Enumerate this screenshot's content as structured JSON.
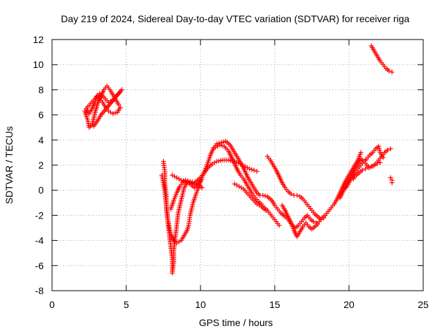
{
  "chart_data": {
    "type": "scatter",
    "title": "Day 219 of 2024, Sidereal Day-to-day VTEC variation (SDTVAR) for receiver riga",
    "xlabel": "GPS time / hours",
    "ylabel": "SDTVAR / TECUs",
    "xlim": [
      0,
      25
    ],
    "ylim": [
      -8,
      12
    ],
    "x_ticks": [
      "0",
      "5",
      "10",
      "15",
      "20",
      "25"
    ],
    "y_ticks": [
      "-8",
      "-6",
      "-4",
      "-2",
      "0",
      "2",
      "4",
      "6",
      "8",
      "10",
      "12"
    ],
    "grid": true,
    "marker": "+",
    "color": "#ff0000",
    "series": [
      {
        "points": [
          [
            2.2,
            6.3
          ],
          [
            2.4,
            5.6
          ],
          [
            2.5,
            5.0
          ],
          [
            2.7,
            5.2
          ],
          [
            2.9,
            6.2
          ],
          [
            3.1,
            7.0
          ],
          [
            3.3,
            7.5
          ],
          [
            3.5,
            8.0
          ],
          [
            3.7,
            8.3
          ],
          [
            3.9,
            8.0
          ],
          [
            4.1,
            7.6
          ],
          [
            4.3,
            7.2
          ],
          [
            4.5,
            6.8
          ],
          [
            4.6,
            6.6
          ],
          [
            4.4,
            6.2
          ],
          [
            4.1,
            6.1
          ],
          [
            3.8,
            6.3
          ],
          [
            3.6,
            6.6
          ],
          [
            3.4,
            7.0
          ],
          [
            3.2,
            7.3
          ],
          [
            3.0,
            7.5
          ],
          [
            2.9,
            7.0
          ],
          [
            2.7,
            6.5
          ],
          [
            2.5,
            6.1
          ],
          [
            2.3,
            6.5
          ],
          [
            2.6,
            6.9
          ],
          [
            2.9,
            7.3
          ],
          [
            3.2,
            7.7
          ],
          [
            3.5,
            7.4
          ],
          [
            3.8,
            7.0
          ],
          [
            4.1,
            7.2
          ],
          [
            4.4,
            7.6
          ],
          [
            4.7,
            8.0
          ],
          [
            3.3,
            6.0
          ],
          [
            3.1,
            5.6
          ],
          [
            2.8,
            5.1
          ]
        ]
      },
      {
        "points": [
          [
            7.5,
            2.3
          ],
          [
            7.6,
            1.5
          ],
          [
            7.6,
            0.5
          ],
          [
            7.7,
            -0.5
          ],
          [
            7.7,
            -1.5
          ],
          [
            7.8,
            -2.5
          ],
          [
            7.9,
            -3.5
          ],
          [
            8.0,
            -4.5
          ],
          [
            8.1,
            -5.5
          ],
          [
            8.1,
            -6.6
          ],
          [
            8.2,
            -5.8
          ],
          [
            8.2,
            -4.8
          ],
          [
            8.3,
            -3.8
          ],
          [
            8.4,
            -2.8
          ],
          [
            8.5,
            -1.8
          ],
          [
            8.7,
            -0.8
          ],
          [
            8.9,
            0.2
          ],
          [
            9.1,
            0.6
          ],
          [
            9.4,
            0.4
          ],
          [
            9.6,
            0.2
          ],
          [
            9.8,
            0.4
          ],
          [
            10.0,
            0.8
          ]
        ]
      },
      {
        "points": [
          [
            7.4,
            1.2
          ],
          [
            7.5,
            0.6
          ],
          [
            7.6,
            -0.2
          ],
          [
            7.7,
            -1.2
          ],
          [
            7.8,
            -2.2
          ],
          [
            7.9,
            -3.0
          ],
          [
            8.0,
            -3.5
          ],
          [
            8.2,
            -4.0
          ],
          [
            8.4,
            -4.2
          ],
          [
            8.7,
            -4.0
          ],
          [
            8.9,
            -3.6
          ],
          [
            9.1,
            -3.2
          ],
          [
            9.2,
            -2.8
          ],
          [
            9.3,
            -2.0
          ],
          [
            9.5,
            -1.0
          ],
          [
            9.7,
            -0.3
          ],
          [
            9.9,
            0.3
          ],
          [
            10.1,
            1.0
          ],
          [
            10.3,
            1.6
          ],
          [
            10.5,
            2.2
          ],
          [
            10.7,
            2.9
          ],
          [
            10.9,
            3.4
          ],
          [
            11.1,
            3.7
          ],
          [
            11.4,
            3.8
          ],
          [
            11.7,
            3.9
          ],
          [
            12.0,
            3.6
          ],
          [
            12.2,
            3.2
          ],
          [
            12.4,
            2.8
          ],
          [
            12.6,
            2.4
          ],
          [
            12.8,
            2.0
          ],
          [
            13.0,
            1.5
          ],
          [
            13.2,
            1.0
          ],
          [
            13.4,
            0.6
          ],
          [
            13.6,
            0.2
          ],
          [
            13.8,
            -0.2
          ],
          [
            14.0,
            -0.4
          ],
          [
            14.2,
            -0.4
          ],
          [
            14.5,
            -0.5
          ],
          [
            14.8,
            -0.8
          ],
          [
            15.0,
            -1.2
          ],
          [
            15.2,
            -1.5
          ],
          [
            15.4,
            -1.8
          ],
          [
            15.6,
            -2.0
          ],
          [
            15.8,
            -2.2
          ],
          [
            16.0,
            -2.5
          ],
          [
            16.2,
            -2.8
          ],
          [
            16.4,
            -3.0
          ],
          [
            16.6,
            -2.8
          ],
          [
            16.8,
            -2.5
          ],
          [
            17.0,
            -2.2
          ],
          [
            17.2,
            -2.0
          ],
          [
            17.4,
            -2.3
          ],
          [
            17.6,
            -2.5
          ],
          [
            17.8,
            -2.6
          ],
          [
            18.0,
            -2.5
          ],
          [
            18.2,
            -2.2
          ],
          [
            18.4,
            -2.0
          ],
          [
            18.6,
            -1.7
          ],
          [
            18.8,
            -1.4
          ],
          [
            19.0,
            -1.1
          ],
          [
            19.2,
            -0.7
          ],
          [
            19.4,
            -0.2
          ],
          [
            19.6,
            0.3
          ],
          [
            19.8,
            0.8
          ],
          [
            20.0,
            1.2
          ],
          [
            20.2,
            1.6
          ],
          [
            20.4,
            2.0
          ],
          [
            20.6,
            2.4
          ],
          [
            20.8,
            3.0
          ]
        ]
      },
      {
        "points": [
          [
            8.0,
            -1.5
          ],
          [
            8.2,
            -0.8
          ],
          [
            8.4,
            -0.2
          ],
          [
            8.6,
            0.3
          ],
          [
            8.8,
            0.6
          ],
          [
            9.0,
            0.8
          ],
          [
            9.3,
            0.7
          ],
          [
            9.6,
            0.6
          ],
          [
            9.9,
            0.9
          ],
          [
            10.2,
            1.3
          ],
          [
            10.5,
            1.8
          ],
          [
            10.8,
            2.1
          ],
          [
            11.1,
            2.3
          ],
          [
            11.5,
            2.4
          ],
          [
            11.9,
            2.4
          ],
          [
            12.3,
            2.3
          ],
          [
            12.7,
            2.1
          ],
          [
            13.0,
            1.9
          ],
          [
            13.3,
            1.7
          ],
          [
            13.6,
            1.6
          ],
          [
            13.8,
            1.5
          ]
        ]
      },
      {
        "points": [
          [
            8.1,
            1.2
          ],
          [
            8.4,
            1.0
          ],
          [
            8.7,
            0.8
          ],
          [
            9.0,
            0.7
          ],
          [
            9.3,
            0.6
          ],
          [
            9.6,
            0.5
          ],
          [
            9.9,
            0.4
          ],
          [
            10.1,
            0.2
          ]
        ]
      },
      {
        "points": [
          [
            11.0,
            3.4
          ],
          [
            11.3,
            3.6
          ],
          [
            11.6,
            3.5
          ],
          [
            11.9,
            3.1
          ],
          [
            12.1,
            2.6
          ],
          [
            12.3,
            2.1
          ],
          [
            12.5,
            1.6
          ],
          [
            12.7,
            1.2
          ],
          [
            12.9,
            0.9
          ],
          [
            13.1,
            0.5
          ],
          [
            13.3,
            0.1
          ],
          [
            13.5,
            -0.3
          ],
          [
            13.7,
            -0.6
          ],
          [
            13.9,
            -0.9
          ],
          [
            14.1,
            -1.1
          ],
          [
            14.3,
            -1.4
          ],
          [
            14.5,
            -1.6
          ],
          [
            14.7,
            -1.9
          ],
          [
            14.9,
            -2.2
          ],
          [
            15.1,
            -2.5
          ],
          [
            15.3,
            -2.8
          ]
        ]
      },
      {
        "points": [
          [
            12.3,
            0.5
          ],
          [
            12.6,
            0.3
          ],
          [
            12.9,
            0.1
          ],
          [
            13.2,
            -0.3
          ],
          [
            13.5,
            -0.7
          ],
          [
            13.8,
            -1.1
          ],
          [
            14.1,
            -1.3
          ],
          [
            14.4,
            -1.6
          ]
        ]
      },
      {
        "points": [
          [
            14.5,
            2.7
          ],
          [
            14.7,
            2.4
          ],
          [
            14.9,
            2.0
          ],
          [
            15.1,
            1.6
          ],
          [
            15.3,
            1.1
          ],
          [
            15.5,
            0.6
          ],
          [
            15.7,
            0.2
          ],
          [
            15.9,
            -0.1
          ],
          [
            16.1,
            -0.3
          ],
          [
            16.3,
            -0.4
          ],
          [
            16.5,
            -0.4
          ],
          [
            16.7,
            -0.5
          ],
          [
            16.9,
            -0.7
          ],
          [
            17.1,
            -1.0
          ],
          [
            17.3,
            -1.3
          ],
          [
            17.5,
            -1.6
          ],
          [
            17.7,
            -1.9
          ],
          [
            17.9,
            -2.1
          ],
          [
            18.1,
            -2.3
          ],
          [
            18.3,
            -2.2
          ]
        ]
      },
      {
        "points": [
          [
            15.5,
            -1.2
          ],
          [
            15.7,
            -1.6
          ],
          [
            15.9,
            -2.1
          ],
          [
            16.1,
            -2.6
          ],
          [
            16.3,
            -3.2
          ],
          [
            16.5,
            -3.7
          ],
          [
            16.7,
            -3.3
          ],
          [
            16.9,
            -2.9
          ],
          [
            17.1,
            -2.6
          ],
          [
            17.3,
            -2.9
          ],
          [
            17.5,
            -3.1
          ],
          [
            17.7,
            -2.9
          ],
          [
            17.9,
            -2.7
          ]
        ]
      },
      {
        "points": [
          [
            19.4,
            -0.6
          ],
          [
            19.6,
            -0.1
          ],
          [
            19.8,
            0.4
          ],
          [
            20.0,
            0.9
          ],
          [
            20.2,
            1.3
          ],
          [
            20.4,
            1.7
          ],
          [
            20.6,
            2.1
          ],
          [
            20.8,
            2.5
          ],
          [
            21.0,
            2.3
          ],
          [
            21.2,
            2.0
          ],
          [
            21.4,
            1.8
          ],
          [
            21.6,
            1.9
          ],
          [
            21.8,
            2.1
          ],
          [
            22.0,
            2.4
          ],
          [
            22.2,
            2.7
          ],
          [
            22.4,
            3.0
          ],
          [
            22.6,
            3.2
          ],
          [
            22.8,
            3.3
          ]
        ]
      },
      {
        "points": [
          [
            19.8,
            0.2
          ],
          [
            20.0,
            0.6
          ],
          [
            20.2,
            1.0
          ],
          [
            20.4,
            1.4
          ],
          [
            20.6,
            1.7
          ],
          [
            20.8,
            2.0
          ],
          [
            21.0,
            2.3
          ],
          [
            21.2,
            2.5
          ],
          [
            21.4,
            2.8
          ],
          [
            21.6,
            3.0
          ],
          [
            21.8,
            3.3
          ],
          [
            22.0,
            3.5
          ],
          [
            22.1,
            3.0
          ],
          [
            22.3,
            2.6
          ]
        ]
      },
      {
        "points": [
          [
            20.3,
            0.9
          ],
          [
            20.5,
            1.2
          ],
          [
            20.7,
            1.4
          ],
          [
            20.9,
            1.6
          ],
          [
            21.1,
            1.7
          ],
          [
            21.3,
            1.8
          ],
          [
            21.5,
            1.9
          ],
          [
            21.7,
            2.0
          ],
          [
            21.9,
            2.1
          ],
          [
            22.1,
            2.2
          ]
        ]
      },
      {
        "points": [
          [
            21.5,
            11.5
          ],
          [
            21.7,
            11.1
          ],
          [
            21.9,
            10.7
          ],
          [
            22.1,
            10.3
          ],
          [
            22.3,
            10.0
          ],
          [
            22.5,
            9.7
          ],
          [
            22.7,
            9.5
          ],
          [
            22.9,
            9.4
          ]
        ]
      },
      {
        "points": [
          [
            22.8,
            1.0
          ],
          [
            22.9,
            0.8
          ],
          [
            22.9,
            0.6
          ]
        ]
      }
    ]
  }
}
